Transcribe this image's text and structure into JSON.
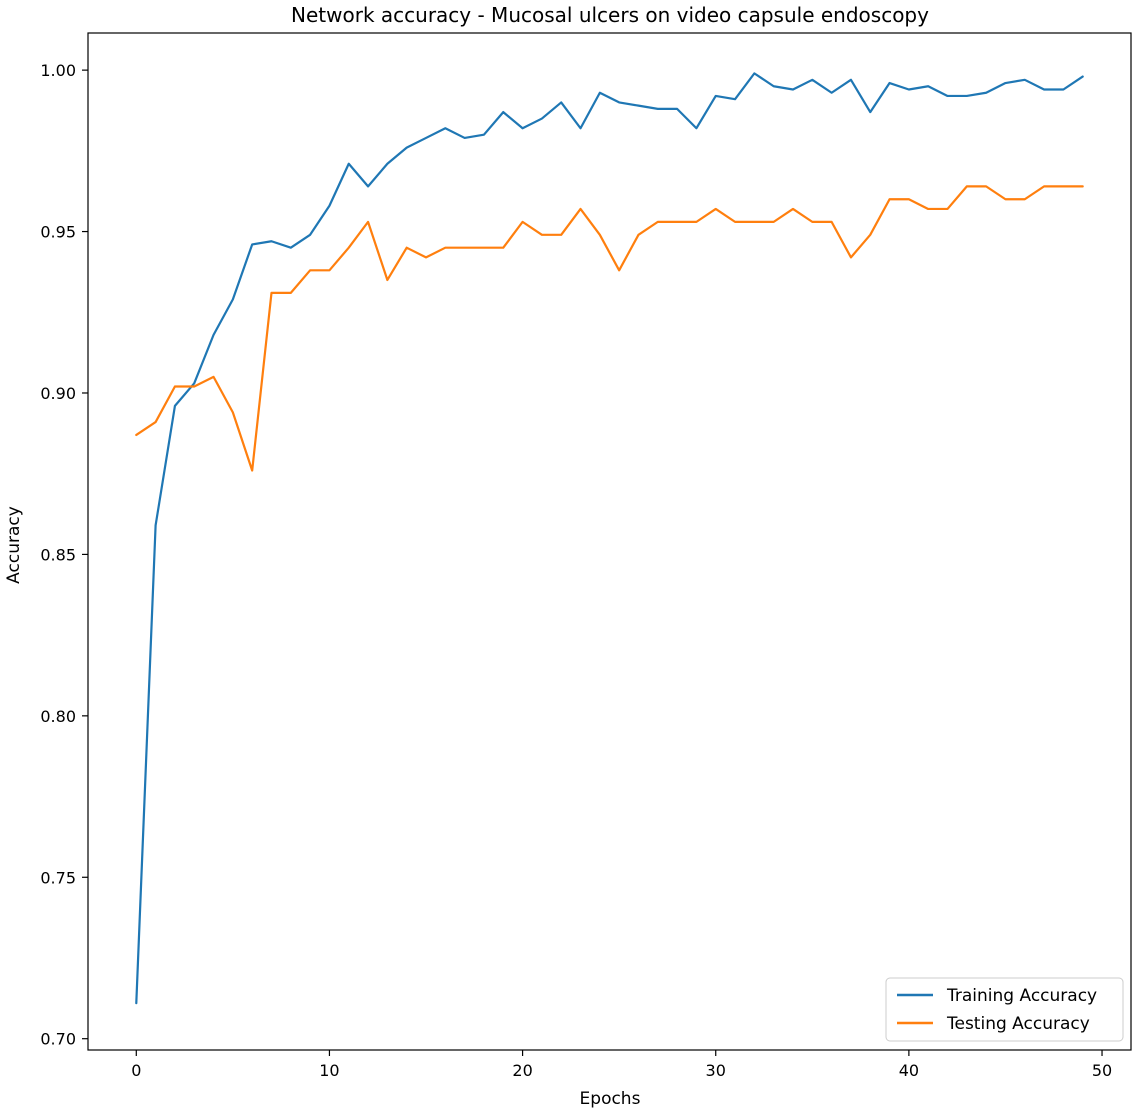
{
  "chart_data": {
    "type": "line",
    "title": "Network accuracy - Mucosal ulcers on video capsule endoscopy",
    "xlabel": "Epochs",
    "ylabel": "Accuracy",
    "xlim": [
      -2.5,
      51.5
    ],
    "ylim": [
      0.6965,
      1.0115
    ],
    "xticks": [
      0,
      10,
      20,
      30,
      40,
      50
    ],
    "xtick_labels": [
      "0",
      "10",
      "20",
      "30",
      "40",
      "50"
    ],
    "yticks": [
      0.7,
      0.75,
      0.8,
      0.85,
      0.9,
      0.95,
      1.0
    ],
    "ytick_labels": [
      "0.70",
      "0.75",
      "0.80",
      "0.85",
      "0.90",
      "0.95",
      "1.00"
    ],
    "grid": false,
    "legend_position": "lower-right",
    "x": [
      0,
      1,
      2,
      3,
      4,
      5,
      6,
      7,
      8,
      9,
      10,
      11,
      12,
      13,
      14,
      15,
      16,
      17,
      18,
      19,
      20,
      21,
      22,
      23,
      24,
      25,
      26,
      27,
      28,
      29,
      30,
      31,
      32,
      33,
      34,
      35,
      36,
      37,
      38,
      39,
      40,
      41,
      42,
      43,
      44,
      45,
      46,
      47,
      48,
      49
    ],
    "series": [
      {
        "name": "Training Accuracy",
        "color": "#1f77b4",
        "values": [
          0.711,
          0.859,
          0.896,
          0.903,
          0.918,
          0.929,
          0.946,
          0.947,
          0.945,
          0.949,
          0.958,
          0.971,
          0.964,
          0.971,
          0.976,
          0.979,
          0.982,
          0.979,
          0.98,
          0.987,
          0.982,
          0.985,
          0.99,
          0.982,
          0.993,
          0.99,
          0.989,
          0.988,
          0.988,
          0.982,
          0.992,
          0.991,
          0.999,
          0.995,
          0.994,
          0.997,
          0.993,
          0.997,
          0.987,
          0.996,
          0.994,
          0.995,
          0.992,
          0.992,
          0.993,
          0.996,
          0.997,
          0.994,
          0.994,
          0.998
        ]
      },
      {
        "name": "Testing Accuracy",
        "color": "#ff7f0e",
        "values": [
          0.887,
          0.891,
          0.902,
          0.902,
          0.905,
          0.894,
          0.876,
          0.931,
          0.931,
          0.938,
          0.938,
          0.945,
          0.953,
          0.935,
          0.945,
          0.942,
          0.945,
          0.945,
          0.945,
          0.945,
          0.953,
          0.949,
          0.949,
          0.957,
          0.949,
          0.938,
          0.949,
          0.953,
          0.953,
          0.953,
          0.957,
          0.953,
          0.953,
          0.953,
          0.957,
          0.953,
          0.953,
          0.942,
          0.949,
          0.96,
          0.96,
          0.957,
          0.957,
          0.964,
          0.964,
          0.96,
          0.96,
          0.964,
          0.964,
          0.964
        ]
      }
    ]
  }
}
